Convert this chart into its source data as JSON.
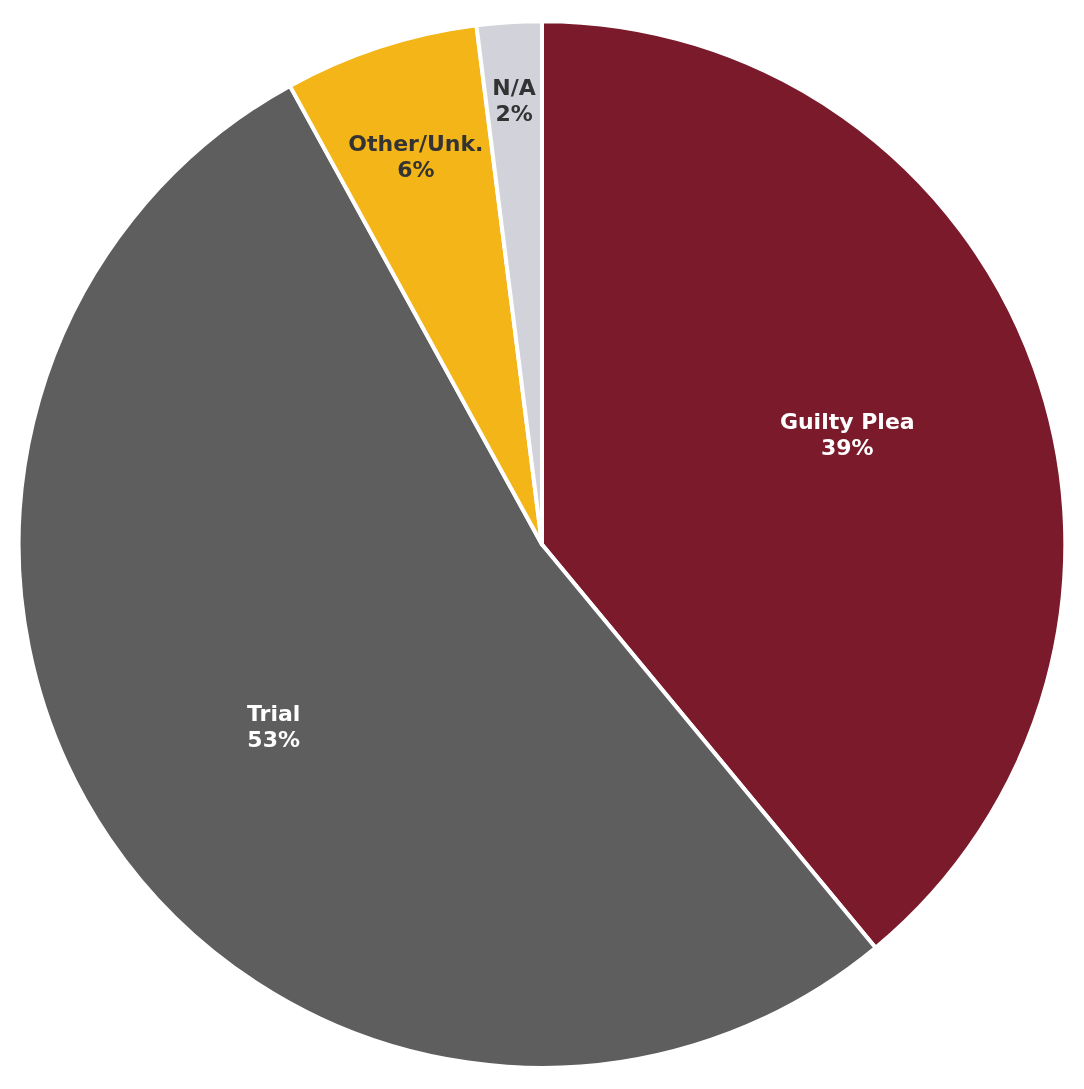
{
  "chart_data": {
    "type": "pie",
    "categories": [
      "Guilty Plea",
      "Trial",
      "Other/Unk.",
      "N/A"
    ],
    "values": [
      39,
      53,
      6,
      2
    ],
    "value_labels": [
      "39%",
      "53%",
      "6%",
      "2%"
    ],
    "colors": [
      "#7b1a2a",
      "#5e5e5e",
      "#f3b518",
      "#d2d2da"
    ],
    "legend": false
  }
}
